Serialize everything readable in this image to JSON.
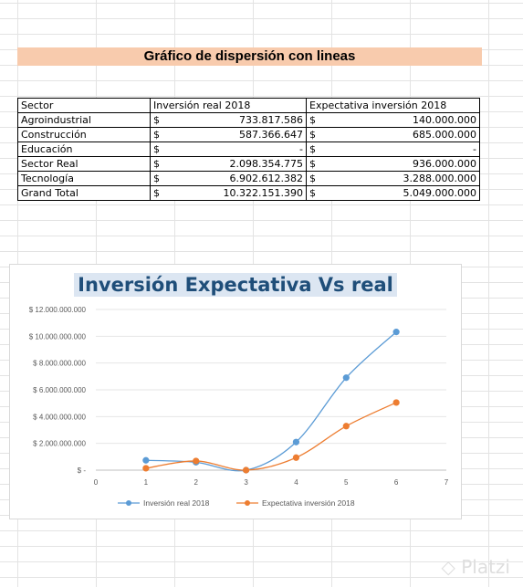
{
  "sheet": {
    "title": "Gráfico de dispersión con lineas"
  },
  "table": {
    "headers": [
      "Sector",
      "Inversión real 2018",
      "Expectativa inversión 2018"
    ],
    "currency": "$",
    "rows": [
      {
        "sector": "Agroindustrial",
        "real": "733.817.586",
        "expectativa": "140.000.000"
      },
      {
        "sector": "Construcción",
        "real": "587.366.647",
        "expectativa": "685.000.000"
      },
      {
        "sector": "Educación",
        "real": "-",
        "expectativa": "-"
      },
      {
        "sector": "Sector Real",
        "real": "2.098.354.775",
        "expectativa": "936.000.000"
      },
      {
        "sector": "Tecnología",
        "real": "6.902.612.382",
        "expectativa": "3.288.000.000"
      },
      {
        "sector": "Grand Total",
        "real": "10.322.151.390",
        "expectativa": "5.049.000.000"
      }
    ]
  },
  "chart_data": {
    "type": "scatter",
    "title": "Inversión Expectativa Vs real",
    "xlim": [
      0,
      7
    ],
    "ylim": [
      0,
      12000000000
    ],
    "x_ticks": [
      "0",
      "1",
      "2",
      "3",
      "4",
      "5",
      "6",
      "7"
    ],
    "y_ticks": [
      "$ -",
      "$ 2.000.000.000",
      "$ 4.000.000.000",
      "$ 6.000.000.000",
      "$ 8.000.000.000",
      "$ 10.000.000.000",
      "$ 12.000.000.000"
    ],
    "legend_position": "bottom",
    "series": [
      {
        "name": "Inversión real 2018",
        "color": "#5b9bd5",
        "x": [
          1,
          2,
          3,
          4,
          5,
          6
        ],
        "y": [
          733817586,
          587366647,
          0,
          2098354775,
          6902612382,
          10322151390
        ]
      },
      {
        "name": "Expectativa inversión 2018",
        "color": "#ed7d31",
        "x": [
          1,
          2,
          3,
          4,
          5,
          6
        ],
        "y": [
          140000000,
          685000000,
          0,
          936000000,
          3288000000,
          5049000000
        ]
      }
    ]
  },
  "watermark": "Platzi"
}
